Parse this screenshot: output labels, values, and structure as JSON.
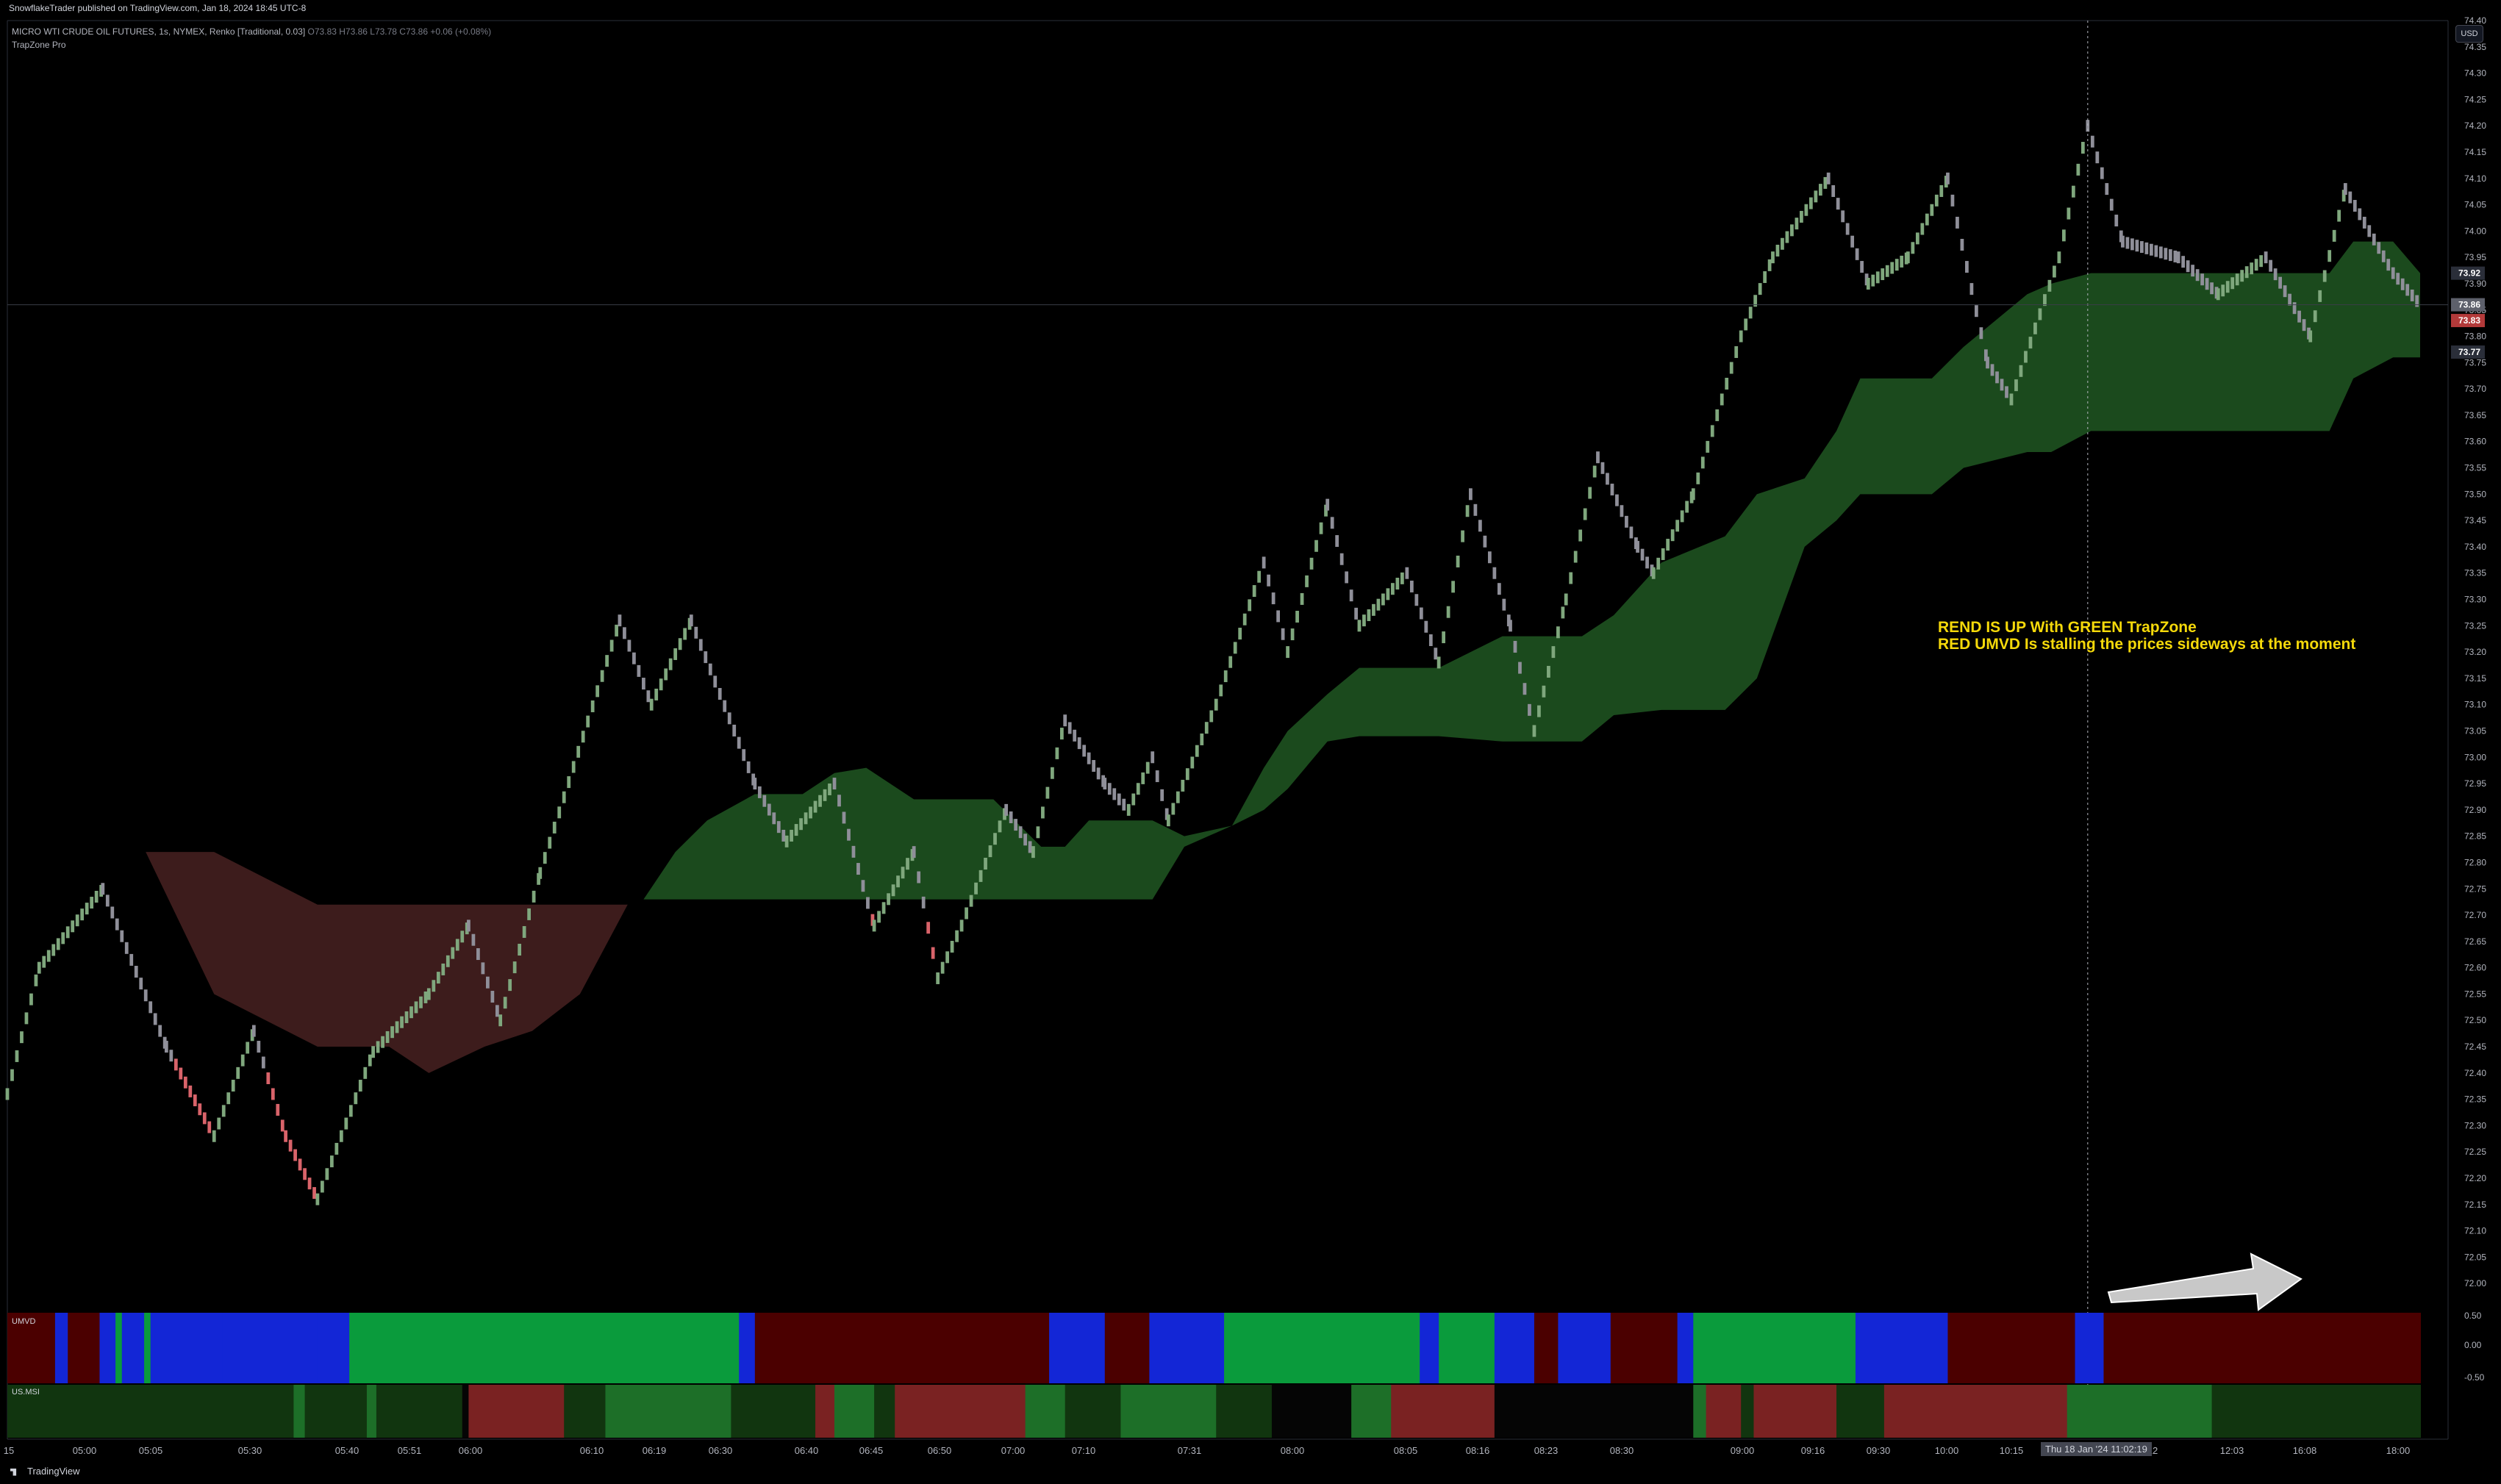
{
  "header": {
    "publisher": "SnowflakeTrader published on TradingView.com, Jan 18, 2024 18:45 UTC-8",
    "symbol": "MICRO WTI CRUDE OIL FUTURES, 1s, NYMEX, Renko [Traditional, 0.03]",
    "ohlc": "O73.83 H73.86 L73.78 C73.86 +0.06 (+0.08%)",
    "indicator": "TrapZone Pro",
    "currency_button": "USD"
  },
  "annotation": {
    "line1": "REND IS UP With GREEN TrapZone",
    "line2": "RED UMVD Is stalling the prices sideways at the moment"
  },
  "panes": {
    "umvd_label": "UMVD",
    "usmsi_label": "US.MSI"
  },
  "crosshair_tag": "Thu 18 Jan '24  11:02:19",
  "footer": {
    "brand": "TradingView"
  },
  "colors": {
    "bull_brick": "#7fa77d",
    "neutral_brick": "#8f8f99",
    "bear_brick": "#d9636a",
    "trapzone_green": "#1b4a1d",
    "trapzone_red": "#3d1c1c",
    "umvd_green": "#0a9b3c",
    "umvd_blue": "#1326d6",
    "umvd_red": "#4b0000",
    "msi_dark_green": "#11350f",
    "msi_green": "#1d6f28",
    "msi_red": "#7a2222",
    "annotation": "#f5d90a"
  },
  "chart_data": {
    "type": "line",
    "ylim": [
      71.95,
      74.4
    ],
    "y_ticks": [
      72.0,
      72.05,
      72.1,
      72.15,
      72.2,
      72.25,
      72.3,
      72.35,
      72.4,
      72.45,
      72.5,
      72.55,
      72.6,
      72.65,
      72.7,
      72.75,
      72.8,
      72.85,
      72.9,
      72.95,
      73.0,
      73.05,
      73.1,
      73.15,
      73.2,
      73.25,
      73.3,
      73.35,
      73.4,
      73.45,
      73.5,
      73.55,
      73.6,
      73.65,
      73.7,
      73.75,
      73.8,
      73.85,
      73.9,
      73.95,
      74.0,
      74.05,
      74.1,
      74.15,
      74.2,
      74.25,
      74.3,
      74.35,
      74.4
    ],
    "price_tags": [
      {
        "value": 73.92,
        "label": "73.92",
        "color": "#2a2e39"
      },
      {
        "value": 73.86,
        "label": "73.86",
        "color": "#5d606b"
      },
      {
        "value": 73.83,
        "label": "73.83",
        "color": "#b33a3a"
      },
      {
        "value": 73.77,
        "label": "73.77",
        "color": "#2a2e39"
      }
    ],
    "x_ticks": [
      "15",
      "05:00",
      "05:05",
      "05:30",
      "05:40",
      "05:51",
      "06:00",
      "06:10",
      "06:19",
      "06:30",
      "06:40",
      "06:45",
      "06:50",
      "07:00",
      "07:10",
      "07:31",
      "08:00",
      "08:05",
      "08:16",
      "08:23",
      "08:30",
      "09:00",
      "09:16",
      "09:30",
      "10:00",
      "10:15",
      "12",
      "12:03",
      "16:08",
      "18:00"
    ],
    "price_path": [
      [
        0,
        72.36
      ],
      [
        20,
        72.6
      ],
      [
        60,
        72.75
      ],
      [
        100,
        72.45
      ],
      [
        130,
        72.28
      ],
      [
        155,
        72.48
      ],
      [
        175,
        72.28
      ],
      [
        195,
        72.16
      ],
      [
        230,
        72.44
      ],
      [
        265,
        72.55
      ],
      [
        290,
        72.68
      ],
      [
        310,
        72.5
      ],
      [
        335,
        72.78
      ],
      [
        385,
        73.26
      ],
      [
        405,
        73.1
      ],
      [
        430,
        73.26
      ],
      [
        470,
        72.95
      ],
      [
        490,
        72.84
      ],
      [
        520,
        72.95
      ],
      [
        545,
        72.68
      ],
      [
        570,
        72.82
      ],
      [
        585,
        72.58
      ],
      [
        600,
        72.68
      ],
      [
        628,
        72.9
      ],
      [
        645,
        72.82
      ],
      [
        665,
        73.07
      ],
      [
        690,
        72.95
      ],
      [
        705,
        72.9
      ],
      [
        720,
        73.0
      ],
      [
        730,
        72.88
      ],
      [
        760,
        73.1
      ],
      [
        790,
        73.37
      ],
      [
        805,
        73.2
      ],
      [
        830,
        73.48
      ],
      [
        850,
        73.25
      ],
      [
        880,
        73.35
      ],
      [
        900,
        73.18
      ],
      [
        920,
        73.5
      ],
      [
        945,
        73.25
      ],
      [
        960,
        73.05
      ],
      [
        980,
        73.3
      ],
      [
        1000,
        73.57
      ],
      [
        1025,
        73.4
      ],
      [
        1035,
        73.35
      ],
      [
        1060,
        73.5
      ],
      [
        1090,
        73.8
      ],
      [
        1110,
        73.95
      ],
      [
        1145,
        74.1
      ],
      [
        1170,
        73.9
      ],
      [
        1195,
        73.95
      ],
      [
        1220,
        74.1
      ],
      [
        1245,
        73.75
      ],
      [
        1260,
        73.68
      ],
      [
        1290,
        73.95
      ],
      [
        1308,
        74.2
      ],
      [
        1330,
        73.98
      ],
      [
        1365,
        73.95
      ],
      [
        1390,
        73.88
      ],
      [
        1420,
        73.95
      ],
      [
        1448,
        73.8
      ],
      [
        1470,
        74.08
      ],
      [
        1500,
        73.92
      ],
      [
        1517,
        73.86
      ]
    ],
    "trapzone_green": [
      [
        400,
        72.73,
        72.73
      ],
      [
        420,
        72.82,
        72.73
      ],
      [
        440,
        72.88,
        72.73
      ],
      [
        470,
        72.93,
        72.73
      ],
      [
        500,
        72.93,
        72.73
      ],
      [
        520,
        72.97,
        72.73
      ],
      [
        540,
        72.98,
        72.73
      ],
      [
        570,
        72.92,
        72.73
      ],
      [
        620,
        72.92,
        72.73
      ],
      [
        650,
        72.83,
        72.73
      ],
      [
        665,
        72.83,
        72.73
      ],
      [
        680,
        72.88,
        72.73
      ],
      [
        700,
        72.88,
        72.73
      ],
      [
        720,
        72.88,
        72.73
      ],
      [
        740,
        72.85,
        72.83
      ],
      [
        770,
        72.87,
        72.87
      ],
      [
        790,
        72.98,
        72.9
      ],
      [
        805,
        73.05,
        72.94
      ],
      [
        830,
        73.12,
        73.03
      ],
      [
        850,
        73.17,
        73.04
      ],
      [
        900,
        73.17,
        73.04
      ],
      [
        940,
        73.23,
        73.03
      ],
      [
        990,
        73.23,
        73.03
      ],
      [
        1010,
        73.27,
        73.08
      ],
      [
        1040,
        73.37,
        73.09
      ],
      [
        1080,
        73.42,
        73.09
      ],
      [
        1100,
        73.5,
        73.15
      ],
      [
        1130,
        73.53,
        73.4
      ],
      [
        1150,
        73.62,
        73.45
      ],
      [
        1165,
        73.72,
        73.5
      ],
      [
        1180,
        73.72,
        73.5
      ],
      [
        1210,
        73.72,
        73.5
      ],
      [
        1230,
        73.78,
        73.55
      ],
      [
        1270,
        73.88,
        73.58
      ],
      [
        1285,
        73.9,
        73.58
      ],
      [
        1310,
        73.92,
        73.62
      ],
      [
        1380,
        73.92,
        73.62
      ],
      [
        1440,
        73.92,
        73.62
      ],
      [
        1460,
        73.92,
        73.62
      ],
      [
        1475,
        73.98,
        73.72
      ],
      [
        1500,
        73.98,
        73.76
      ],
      [
        1517,
        73.92,
        73.76
      ]
    ],
    "trapzone_red": [
      [
        87,
        72.82,
        72.82
      ],
      [
        130,
        72.82,
        72.55
      ],
      [
        195,
        72.72,
        72.45
      ],
      [
        240,
        72.72,
        72.45
      ],
      [
        265,
        72.72,
        72.4
      ],
      [
        300,
        72.72,
        72.45
      ],
      [
        330,
        72.72,
        72.48
      ],
      [
        360,
        72.72,
        72.55
      ],
      [
        390,
        72.72,
        72.72
      ]
    ],
    "umvd_segments": [
      [
        0,
        30,
        "r"
      ],
      [
        30,
        38,
        "b"
      ],
      [
        38,
        58,
        "r"
      ],
      [
        58,
        68,
        "b"
      ],
      [
        68,
        72,
        "g"
      ],
      [
        72,
        86,
        "b"
      ],
      [
        86,
        90,
        "g"
      ],
      [
        90,
        103,
        "b"
      ],
      [
        103,
        135,
        "b"
      ],
      [
        135,
        195,
        "b"
      ],
      [
        195,
        215,
        "b"
      ],
      [
        215,
        460,
        "g"
      ],
      [
        460,
        470,
        "b"
      ],
      [
        470,
        655,
        "r"
      ],
      [
        655,
        690,
        "b"
      ],
      [
        690,
        718,
        "r"
      ],
      [
        718,
        740,
        "b"
      ],
      [
        740,
        765,
        "b"
      ],
      [
        765,
        888,
        "g"
      ],
      [
        888,
        900,
        "b"
      ],
      [
        900,
        935,
        "g"
      ],
      [
        935,
        960,
        "b"
      ],
      [
        960,
        975,
        "r"
      ],
      [
        975,
        1008,
        "b"
      ],
      [
        1008,
        1050,
        "r"
      ],
      [
        1050,
        1060,
        "b"
      ],
      [
        1060,
        1162,
        "g"
      ],
      [
        1162,
        1178,
        "b"
      ],
      [
        1178,
        1220,
        "b"
      ],
      [
        1220,
        1300,
        "r"
      ],
      [
        1300,
        1318,
        "b"
      ],
      [
        1318,
        1517,
        "r"
      ]
    ],
    "msi_segments": [
      [
        0,
        180,
        "d"
      ],
      [
        180,
        187,
        "g"
      ],
      [
        187,
        226,
        "d"
      ],
      [
        226,
        232,
        "g"
      ],
      [
        232,
        286,
        "d"
      ],
      [
        286,
        290,
        "k"
      ],
      [
        290,
        350,
        "r"
      ],
      [
        350,
        376,
        "d"
      ],
      [
        376,
        455,
        "g"
      ],
      [
        455,
        508,
        "d"
      ],
      [
        508,
        520,
        "r"
      ],
      [
        520,
        545,
        "g"
      ],
      [
        545,
        558,
        "d"
      ],
      [
        558,
        610,
        "r"
      ],
      [
        610,
        640,
        "r"
      ],
      [
        640,
        665,
        "g"
      ],
      [
        665,
        700,
        "d"
      ],
      [
        700,
        760,
        "g"
      ],
      [
        760,
        795,
        "d"
      ],
      [
        795,
        845,
        "k"
      ],
      [
        845,
        870,
        "g"
      ],
      [
        870,
        935,
        "r"
      ],
      [
        935,
        1060,
        "k"
      ],
      [
        1060,
        1068,
        "g"
      ],
      [
        1068,
        1090,
        "r"
      ],
      [
        1090,
        1098,
        "d"
      ],
      [
        1098,
        1150,
        "r"
      ],
      [
        1150,
        1180,
        "d"
      ],
      [
        1180,
        1214,
        "r"
      ],
      [
        1214,
        1250,
        "r"
      ],
      [
        1250,
        1295,
        "r"
      ],
      [
        1295,
        1386,
        "g"
      ],
      [
        1386,
        1517,
        "d"
      ]
    ]
  }
}
